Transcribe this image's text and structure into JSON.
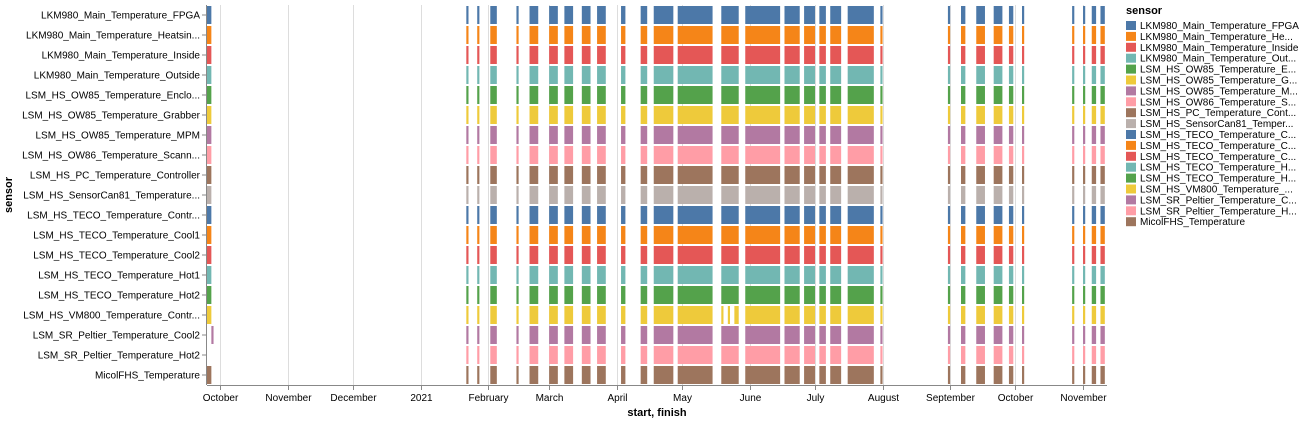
{
  "chart_data": {
    "type": "gantt",
    "xlabel": "start, finish",
    "ylabel": "sensor",
    "x_ticks": [
      {
        "label": "October",
        "date": "2020-10-01"
      },
      {
        "label": "November",
        "date": "2020-11-01"
      },
      {
        "label": "December",
        "date": "2020-12-01"
      },
      {
        "label": "2021",
        "date": "2021-01-01"
      },
      {
        "label": "February",
        "date": "2021-02-01"
      },
      {
        "label": "March",
        "date": "2021-03-01"
      },
      {
        "label": "April",
        "date": "2021-04-01"
      },
      {
        "label": "May",
        "date": "2021-05-01"
      },
      {
        "label": "June",
        "date": "2021-06-01"
      },
      {
        "label": "July",
        "date": "2021-07-01"
      },
      {
        "label": "August",
        "date": "2021-08-01"
      },
      {
        "label": "September",
        "date": "2021-09-01"
      },
      {
        "label": "October",
        "date": "2021-10-01"
      },
      {
        "label": "November",
        "date": "2021-11-01"
      }
    ],
    "x_domain": [
      "2020-09-25",
      "2021-11-12"
    ],
    "legend_title": "sensor",
    "legend_position": "right",
    "sensors": [
      {
        "name": "LKM980_Main_Temperature_FPGA",
        "axis_label": "LKM980_Main_Temperature_FPGA",
        "legend_label": "LKM980_Main_Temperature_FPGA",
        "color": "#4c78a8"
      },
      {
        "name": "LKM980_Main_Temperature_Heatsink",
        "axis_label": "LKM980_Main_Temperature_Heatsin...",
        "legend_label": "LKM980_Main_Temperature_He...",
        "color": "#f58518"
      },
      {
        "name": "LKM980_Main_Temperature_Inside",
        "axis_label": "LKM980_Main_Temperature_Inside",
        "legend_label": "LKM980_Main_Temperature_Inside",
        "color": "#e45756"
      },
      {
        "name": "LKM980_Main_Temperature_Outside",
        "axis_label": "LKM980_Main_Temperature_Outside",
        "legend_label": "LKM980_Main_Temperature_Out...",
        "color": "#72b7b2"
      },
      {
        "name": "LSM_HS_OW85_Temperature_Enclosure",
        "axis_label": "LSM_HS_OW85_Temperature_Enclo...",
        "legend_label": "LSM_HS_OW85_Temperature_E...",
        "color": "#54a24b"
      },
      {
        "name": "LSM_HS_OW85_Temperature_Grabber",
        "axis_label": "LSM_HS_OW85_Temperature_Grabber",
        "legend_label": "LSM_HS_OW85_Temperature_G...",
        "color": "#eeca3b"
      },
      {
        "name": "LSM_HS_OW85_Temperature_MPM",
        "axis_label": "LSM_HS_OW85_Temperature_MPM",
        "legend_label": "LSM_HS_OW85_Temperature_M...",
        "color": "#b279a2"
      },
      {
        "name": "LSM_HS_OW86_Temperature_Scanner",
        "axis_label": "LSM_HS_OW86_Temperature_Scann...",
        "legend_label": "LSM_HS_OW86_Temperature_S...",
        "color": "#ff9da6"
      },
      {
        "name": "LSM_HS_PC_Temperature_Controller",
        "axis_label": "LSM_HS_PC_Temperature_Controller",
        "legend_label": "LSM_HS_PC_Temperature_Cont...",
        "color": "#9d755d"
      },
      {
        "name": "LSM_HS_SensorCan81_Temperature",
        "axis_label": "LSM_HS_SensorCan81_Temperature...",
        "legend_label": "LSM_HS_SensorCan81_Temper...",
        "color": "#bab0ac"
      },
      {
        "name": "LSM_HS_TECO_Temperature_Controller",
        "axis_label": "LSM_HS_TECO_Temperature_Contr...",
        "legend_label": "LSM_HS_TECO_Temperature_C...",
        "color": "#4c78a8"
      },
      {
        "name": "LSM_HS_TECO_Temperature_Cool1",
        "axis_label": "LSM_HS_TECO_Temperature_Cool1",
        "legend_label": "LSM_HS_TECO_Temperature_C...",
        "color": "#f58518"
      },
      {
        "name": "LSM_HS_TECO_Temperature_Cool2",
        "axis_label": "LSM_HS_TECO_Temperature_Cool2",
        "legend_label": "LSM_HS_TECO_Temperature_C...",
        "color": "#e45756"
      },
      {
        "name": "LSM_HS_TECO_Temperature_Hot1",
        "axis_label": "LSM_HS_TECO_Temperature_Hot1",
        "legend_label": "LSM_HS_TECO_Temperature_H...",
        "color": "#72b7b2"
      },
      {
        "name": "LSM_HS_TECO_Temperature_Hot2",
        "axis_label": "LSM_HS_TECO_Temperature_Hot2",
        "legend_label": "LSM_HS_TECO_Temperature_H...",
        "color": "#54a24b"
      },
      {
        "name": "LSM_HS_VM800_Temperature_Controller",
        "axis_label": "LSM_HS_VM800_Temperature_Contr...",
        "legend_label": "LSM_HS_VM800_Temperature_...",
        "color": "#eeca3b"
      },
      {
        "name": "LSM_SR_Peltier_Temperature_Cool2",
        "axis_label": "LSM_SR_Peltier_Temperature_Cool2",
        "legend_label": "LSM_SR_Peltier_Temperature_C...",
        "color": "#b279a2"
      },
      {
        "name": "LSM_SR_Peltier_Temperature_Hot2",
        "axis_label": "LSM_SR_Peltier_Temperature_Hot2",
        "legend_label": "LSM_SR_Peltier_Temperature_H...",
        "color": "#ff9da6"
      },
      {
        "name": "MicolFHS_Temperature",
        "axis_label": "MicolFHS_Temperature",
        "legend_label": "MicolFHS_Temperature",
        "color": "#9d755d"
      }
    ],
    "common_intervals": [
      [
        "2021-01-22",
        "2021-01-23"
      ],
      [
        "2021-01-27",
        "2021-01-28"
      ],
      [
        "2021-02-02",
        "2021-02-05"
      ],
      [
        "2021-02-14",
        "2021-02-15"
      ],
      [
        "2021-02-20",
        "2021-02-24"
      ],
      [
        "2021-03-01",
        "2021-03-05"
      ],
      [
        "2021-03-08",
        "2021-03-12"
      ],
      [
        "2021-03-16",
        "2021-03-20"
      ],
      [
        "2021-03-23",
        "2021-03-27"
      ],
      [
        "2021-04-03",
        "2021-04-05"
      ],
      [
        "2021-04-12",
        "2021-04-15"
      ],
      [
        "2021-04-18",
        "2021-04-27"
      ],
      [
        "2021-04-29",
        "2021-05-15"
      ],
      [
        "2021-05-19",
        "2021-05-27"
      ],
      [
        "2021-05-30",
        "2021-06-15"
      ],
      [
        "2021-06-17",
        "2021-06-24"
      ],
      [
        "2021-06-26",
        "2021-07-01"
      ],
      [
        "2021-07-03",
        "2021-07-06"
      ],
      [
        "2021-07-08",
        "2021-07-13"
      ],
      [
        "2021-07-16",
        "2021-07-28"
      ],
      [
        "2021-07-31",
        "2021-08-01"
      ],
      [
        "2021-08-31",
        "2021-09-01"
      ],
      [
        "2021-09-06",
        "2021-09-08"
      ],
      [
        "2021-09-13",
        "2021-09-17"
      ],
      [
        "2021-09-21",
        "2021-09-25"
      ],
      [
        "2021-09-28",
        "2021-09-30"
      ],
      [
        "2021-10-04",
        "2021-10-05"
      ],
      [
        "2021-10-27",
        "2021-10-28"
      ],
      [
        "2021-11-01",
        "2021-11-02"
      ],
      [
        "2021-11-05",
        "2021-11-07"
      ],
      [
        "2021-11-09",
        "2021-11-11"
      ]
    ],
    "extra_intervals": [
      {
        "sensor": "LKM980_Main_Temperature_FPGA",
        "start": "2020-09-25",
        "finish": "2020-09-27"
      },
      {
        "sensor": "LKM980_Main_Temperature_Heatsink",
        "start": "2020-09-25",
        "finish": "2020-09-27"
      },
      {
        "sensor": "LKM980_Main_Temperature_Inside",
        "start": "2020-09-25",
        "finish": "2020-09-27"
      },
      {
        "sensor": "LKM980_Main_Temperature_Outside",
        "start": "2020-09-25",
        "finish": "2020-09-27"
      },
      {
        "sensor": "LSM_HS_OW85_Temperature_Enclosure",
        "start": "2020-09-25",
        "finish": "2020-09-27"
      },
      {
        "sensor": "LSM_HS_OW85_Temperature_Grabber",
        "start": "2020-09-25",
        "finish": "2020-09-27"
      },
      {
        "sensor": "LSM_HS_OW85_Temperature_MPM",
        "start": "2020-09-25",
        "finish": "2020-09-27"
      },
      {
        "sensor": "LSM_HS_OW86_Temperature_Scanner",
        "start": "2020-09-25",
        "finish": "2020-09-27"
      },
      {
        "sensor": "LSM_HS_PC_Temperature_Controller",
        "start": "2020-09-25",
        "finish": "2020-09-27"
      },
      {
        "sensor": "LSM_HS_SensorCan81_Temperature",
        "start": "2020-09-25",
        "finish": "2020-09-27"
      },
      {
        "sensor": "LSM_HS_TECO_Temperature_Controller",
        "start": "2020-09-25",
        "finish": "2020-09-27"
      },
      {
        "sensor": "LSM_HS_TECO_Temperature_Cool1",
        "start": "2020-09-25",
        "finish": "2020-09-27"
      },
      {
        "sensor": "LSM_HS_TECO_Temperature_Cool2",
        "start": "2020-09-25",
        "finish": "2020-09-27"
      },
      {
        "sensor": "LSM_HS_TECO_Temperature_Hot1",
        "start": "2020-09-25",
        "finish": "2020-09-27"
      },
      {
        "sensor": "LSM_HS_TECO_Temperature_Hot2",
        "start": "2020-09-25",
        "finish": "2020-09-27"
      },
      {
        "sensor": "LSM_HS_VM800_Temperature_Controller",
        "start": "2020-09-25",
        "finish": "2020-09-27"
      },
      {
        "sensor": "LSM_SR_Peltier_Temperature_Cool2",
        "start": "2020-09-27",
        "finish": "2020-09-28"
      },
      {
        "sensor": "MicolFHS_Temperature",
        "start": "2020-09-25",
        "finish": "2020-09-27"
      }
    ],
    "missing_intervals": [
      {
        "sensor": "LSM_HS_VM800_Temperature_Controller",
        "start": "2021-05-19",
        "finish": "2021-05-27"
      }
    ],
    "partial_intervals": [
      {
        "sensor": "LSM_HS_VM800_Temperature_Controller",
        "start": "2021-05-19",
        "finish": "2021-05-20"
      },
      {
        "sensor": "LSM_HS_VM800_Temperature_Controller",
        "start": "2021-05-22",
        "finish": "2021-05-23"
      },
      {
        "sensor": "LSM_HS_VM800_Temperature_Controller",
        "start": "2021-05-25",
        "finish": "2021-05-27"
      }
    ]
  }
}
